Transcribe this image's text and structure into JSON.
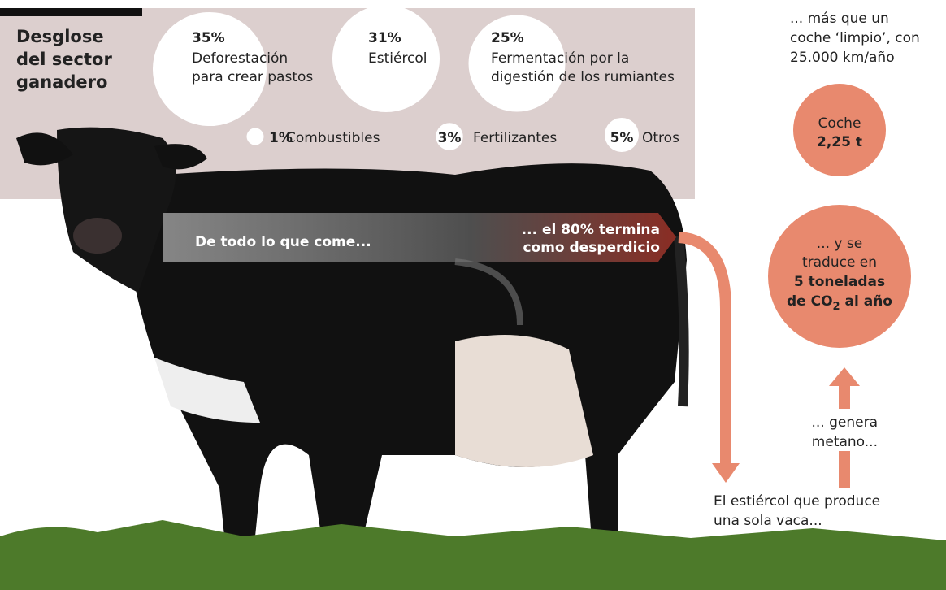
{
  "breakdown": {
    "title_lines": [
      "Desglose",
      "del sector",
      "ganadero"
    ],
    "items": [
      {
        "value": 35,
        "value_label": "35%",
        "lines": [
          "Deforestación",
          "para crear pastos"
        ]
      },
      {
        "value": 31,
        "value_label": "31%",
        "lines": [
          "Estiércol"
        ]
      },
      {
        "value": 25,
        "value_label": "25%",
        "lines": [
          "Fermentación por la",
          "digestión de los rumiantes"
        ]
      },
      {
        "value": 1,
        "value_label": "1%",
        "lines": [
          "Combustibles"
        ]
      },
      {
        "value": 3,
        "value_label": "3%",
        "lines": [
          "Fertilizantes"
        ]
      },
      {
        "value": 5,
        "value_label": "5%",
        "lines": [
          "Otros"
        ]
      }
    ]
  },
  "flow": {
    "eats": "De todo lo que come...",
    "waste_lines": [
      "... el 80% termina",
      "como desperdicio"
    ],
    "manure_lines": [
      "El estiércol que produce",
      "una sola vaca..."
    ],
    "methane_lines": [
      "... genera",
      "metano..."
    ],
    "result_lines": [
      "... y se",
      "traduce en"
    ],
    "result_bold": {
      "line1": "5 toneladas",
      "line2_start": "de CO",
      "subscript": "2",
      "line2_end": " al año"
    },
    "car_compare_lines": [
      "... más que un",
      "coche ‘limpio’, con",
      "25.000 km/año"
    ],
    "car_label": "Coche",
    "car_value": "2,25 t"
  }
}
